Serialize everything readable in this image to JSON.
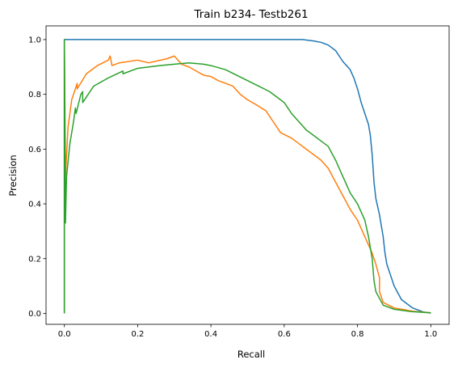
{
  "chart_data": {
    "type": "line",
    "title": "Train b234- Testb261",
    "xlabel": "Recall",
    "ylabel": "Precision",
    "xlim": [
      -0.05,
      1.05
    ],
    "ylim": [
      -0.04,
      1.05
    ],
    "xticks": [
      0.0,
      0.2,
      0.4,
      0.6,
      0.8,
      1.0
    ],
    "yticks": [
      0.0,
      0.2,
      0.4,
      0.6,
      0.8,
      1.0
    ],
    "grid": false,
    "series": [
      {
        "color": "#1f77b4",
        "points": [
          [
            0.0,
            0.0
          ],
          [
            0.0,
            1.0
          ],
          [
            0.65,
            1.0
          ],
          [
            0.68,
            0.995
          ],
          [
            0.7,
            0.99
          ],
          [
            0.72,
            0.98
          ],
          [
            0.74,
            0.96
          ],
          [
            0.75,
            0.94
          ],
          [
            0.76,
            0.92
          ],
          [
            0.78,
            0.89
          ],
          [
            0.79,
            0.86
          ],
          [
            0.8,
            0.82
          ],
          [
            0.81,
            0.77
          ],
          [
            0.82,
            0.73
          ],
          [
            0.83,
            0.69
          ],
          [
            0.835,
            0.65
          ],
          [
            0.84,
            0.58
          ],
          [
            0.845,
            0.48
          ],
          [
            0.85,
            0.42
          ],
          [
            0.86,
            0.36
          ],
          [
            0.87,
            0.28
          ],
          [
            0.875,
            0.22
          ],
          [
            0.88,
            0.18
          ],
          [
            0.89,
            0.14
          ],
          [
            0.9,
            0.1
          ],
          [
            0.92,
            0.05
          ],
          [
            0.95,
            0.02
          ],
          [
            0.98,
            0.005
          ],
          [
            1.0,
            0.001
          ]
        ]
      },
      {
        "color": "#ff7f0e",
        "points": [
          [
            0.0,
            0.0
          ],
          [
            0.0,
            1.0
          ],
          [
            0.003,
            0.5
          ],
          [
            0.01,
            0.68
          ],
          [
            0.02,
            0.78
          ],
          [
            0.035,
            0.84
          ],
          [
            0.035,
            0.82
          ],
          [
            0.06,
            0.875
          ],
          [
            0.09,
            0.905
          ],
          [
            0.12,
            0.925
          ],
          [
            0.125,
            0.94
          ],
          [
            0.13,
            0.905
          ],
          [
            0.15,
            0.915
          ],
          [
            0.2,
            0.925
          ],
          [
            0.23,
            0.915
          ],
          [
            0.28,
            0.93
          ],
          [
            0.3,
            0.94
          ],
          [
            0.32,
            0.91
          ],
          [
            0.34,
            0.9
          ],
          [
            0.36,
            0.885
          ],
          [
            0.38,
            0.87
          ],
          [
            0.4,
            0.865
          ],
          [
            0.42,
            0.85
          ],
          [
            0.44,
            0.84
          ],
          [
            0.46,
            0.83
          ],
          [
            0.48,
            0.8
          ],
          [
            0.5,
            0.78
          ],
          [
            0.52,
            0.765
          ],
          [
            0.55,
            0.74
          ],
          [
            0.57,
            0.7
          ],
          [
            0.59,
            0.66
          ],
          [
            0.62,
            0.64
          ],
          [
            0.64,
            0.62
          ],
          [
            0.66,
            0.6
          ],
          [
            0.68,
            0.58
          ],
          [
            0.7,
            0.56
          ],
          [
            0.72,
            0.53
          ],
          [
            0.74,
            0.48
          ],
          [
            0.76,
            0.43
          ],
          [
            0.78,
            0.38
          ],
          [
            0.8,
            0.34
          ],
          [
            0.82,
            0.28
          ],
          [
            0.84,
            0.22
          ],
          [
            0.85,
            0.18
          ],
          [
            0.86,
            0.13
          ],
          [
            0.86,
            0.08
          ],
          [
            0.87,
            0.04
          ],
          [
            0.9,
            0.02
          ],
          [
            0.95,
            0.008
          ],
          [
            1.0,
            0.002
          ]
        ]
      },
      {
        "color": "#2ca02c",
        "points": [
          [
            0.0,
            0.0
          ],
          [
            0.0,
            1.0
          ],
          [
            0.003,
            0.33
          ],
          [
            0.006,
            0.5
          ],
          [
            0.015,
            0.62
          ],
          [
            0.025,
            0.7
          ],
          [
            0.03,
            0.75
          ],
          [
            0.032,
            0.73
          ],
          [
            0.045,
            0.8
          ],
          [
            0.05,
            0.81
          ],
          [
            0.05,
            0.77
          ],
          [
            0.08,
            0.83
          ],
          [
            0.12,
            0.86
          ],
          [
            0.16,
            0.885
          ],
          [
            0.16,
            0.875
          ],
          [
            0.2,
            0.895
          ],
          [
            0.26,
            0.905
          ],
          [
            0.3,
            0.91
          ],
          [
            0.34,
            0.915
          ],
          [
            0.38,
            0.91
          ],
          [
            0.4,
            0.905
          ],
          [
            0.44,
            0.89
          ],
          [
            0.47,
            0.87
          ],
          [
            0.5,
            0.85
          ],
          [
            0.53,
            0.83
          ],
          [
            0.56,
            0.81
          ],
          [
            0.58,
            0.79
          ],
          [
            0.6,
            0.77
          ],
          [
            0.62,
            0.73
          ],
          [
            0.64,
            0.7
          ],
          [
            0.66,
            0.67
          ],
          [
            0.68,
            0.65
          ],
          [
            0.7,
            0.63
          ],
          [
            0.72,
            0.61
          ],
          [
            0.74,
            0.56
          ],
          [
            0.76,
            0.5
          ],
          [
            0.78,
            0.44
          ],
          [
            0.8,
            0.4
          ],
          [
            0.82,
            0.34
          ],
          [
            0.83,
            0.28
          ],
          [
            0.84,
            0.2
          ],
          [
            0.845,
            0.12
          ],
          [
            0.85,
            0.08
          ],
          [
            0.87,
            0.03
          ],
          [
            0.9,
            0.015
          ],
          [
            0.95,
            0.006
          ],
          [
            1.0,
            0.002
          ]
        ]
      }
    ]
  }
}
